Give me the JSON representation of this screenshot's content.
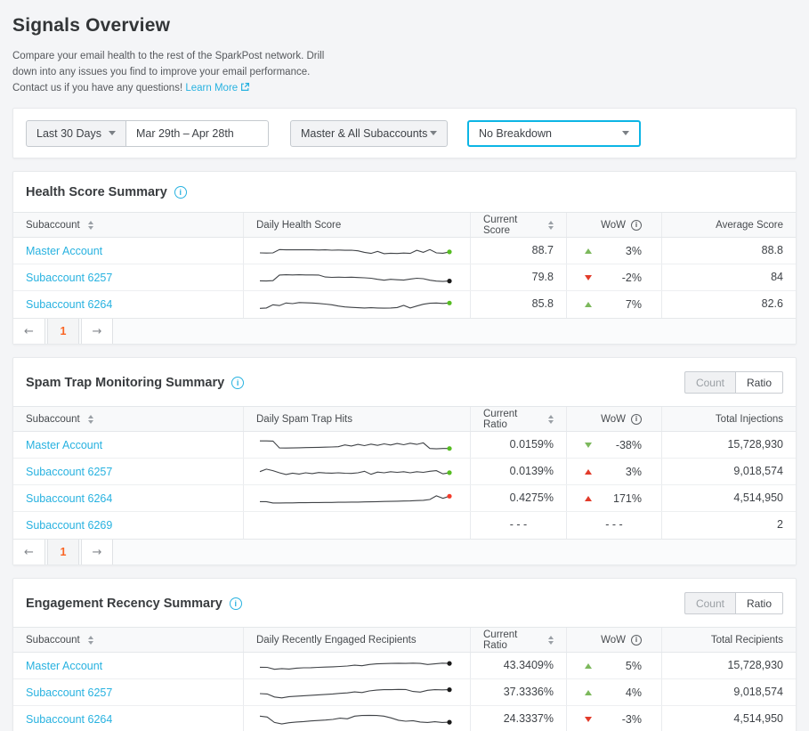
{
  "header": {
    "title": "Signals Overview",
    "description_line1": "Compare your email health to the rest of the SparkPost network. Drill",
    "description_line2": "down into any issues you find to improve your email performance.",
    "description_line3": "Contact us if you have any questions!",
    "learn_more_label": "Learn More"
  },
  "filters": {
    "relative_range_label": "Last 30 Days",
    "date_range_value": "Mar 29th – Apr 28th",
    "subaccounts_label": "Master & All Subaccounts",
    "breakdown_label": "No Breakdown"
  },
  "toggle": {
    "count_label": "Count",
    "ratio_label": "Ratio",
    "active": "Ratio"
  },
  "pagination": {
    "prev_label": "←",
    "page_label": "1",
    "next_label": "→"
  },
  "colors": {
    "accent": "#28b2e0",
    "focus_border": "#0cb5e5",
    "orange": "#fa6423",
    "green": "#7cb85c",
    "red": "#e23b2a",
    "dot_green": "#56bd22",
    "dot_red": "#f43b2a",
    "dot_black": "#1a1a1a",
    "spark_line": "#3f4246"
  },
  "sections": [
    {
      "title": "Health Score Summary",
      "show_toggle": false,
      "show_pagination": true,
      "columns": [
        {
          "label": "Subaccount",
          "sort": true
        },
        {
          "label": "Daily Health Score"
        },
        {
          "label": "Current Score",
          "sort": true
        },
        {
          "label": "WoW",
          "info": true
        },
        {
          "label": "Average Score"
        }
      ],
      "rows": [
        {
          "account": "Master Account",
          "current": "88.7",
          "wow": "3%",
          "trend": "up",
          "trend_color": "green",
          "total": "88.8",
          "dot": "green",
          "spark": [
            0.38,
            0.37,
            0.38,
            0.6,
            0.58,
            0.59,
            0.58,
            0.59,
            0.58,
            0.57,
            0.58,
            0.56,
            0.57,
            0.55,
            0.56,
            0.52,
            0.42,
            0.35,
            0.48,
            0.33,
            0.36,
            0.34,
            0.37,
            0.35,
            0.55,
            0.42,
            0.6,
            0.38,
            0.36,
            0.45
          ]
        },
        {
          "account": "Subaccount 6257",
          "current": "79.8",
          "wow": "-2%",
          "trend": "down",
          "trend_color": "red",
          "total": "84",
          "dot": "black",
          "spark": [
            0.3,
            0.29,
            0.31,
            0.68,
            0.7,
            0.69,
            0.7,
            0.69,
            0.69,
            0.68,
            0.55,
            0.53,
            0.54,
            0.53,
            0.54,
            0.52,
            0.5,
            0.47,
            0.4,
            0.34,
            0.4,
            0.37,
            0.35,
            0.42,
            0.47,
            0.44,
            0.34,
            0.28,
            0.26,
            0.29
          ]
        },
        {
          "account": "Subaccount 6264",
          "current": "85.8",
          "wow": "7%",
          "trend": "up",
          "trend_color": "green",
          "total": "82.6",
          "dot": "green",
          "spark": [
            0.25,
            0.27,
            0.48,
            0.43,
            0.6,
            0.56,
            0.63,
            0.61,
            0.6,
            0.57,
            0.53,
            0.48,
            0.4,
            0.34,
            0.31,
            0.29,
            0.27,
            0.29,
            0.27,
            0.26,
            0.27,
            0.3,
            0.44,
            0.27,
            0.4,
            0.52,
            0.58,
            0.6,
            0.57,
            0.6
          ]
        }
      ]
    },
    {
      "title": "Spam Trap Monitoring Summary",
      "show_toggle": true,
      "show_pagination": true,
      "columns": [
        {
          "label": "Subaccount",
          "sort": true
        },
        {
          "label": "Daily Spam Trap Hits"
        },
        {
          "label": "Current Ratio",
          "sort": true
        },
        {
          "label": "WoW",
          "info": true
        },
        {
          "label": "Total Injections"
        }
      ],
      "rows": [
        {
          "account": "Master Account",
          "current": "0.0159%",
          "wow": "-38%",
          "trend": "down",
          "trend_color": "green",
          "total": "15,728,930",
          "dot": "green",
          "spark": [
            0.78,
            0.78,
            0.77,
            0.32,
            0.31,
            0.32,
            0.33,
            0.34,
            0.35,
            0.36,
            0.37,
            0.38,
            0.4,
            0.52,
            0.45,
            0.55,
            0.47,
            0.57,
            0.49,
            0.59,
            0.51,
            0.61,
            0.53,
            0.63,
            0.55,
            0.65,
            0.28,
            0.26,
            0.28,
            0.28
          ]
        },
        {
          "account": "Subaccount 6257",
          "current": "0.0139%",
          "wow": "3%",
          "trend": "up",
          "trend_color": "red",
          "total": "9,018,574",
          "dot": "green",
          "spark": [
            0.52,
            0.68,
            0.58,
            0.44,
            0.33,
            0.42,
            0.36,
            0.44,
            0.39,
            0.46,
            0.43,
            0.42,
            0.44,
            0.41,
            0.4,
            0.44,
            0.54,
            0.34,
            0.49,
            0.44,
            0.51,
            0.47,
            0.51,
            0.44,
            0.51,
            0.47,
            0.54,
            0.58,
            0.37,
            0.45
          ]
        },
        {
          "account": "Subaccount 6264",
          "current": "0.4275%",
          "wow": "171%",
          "trend": "up",
          "trend_color": "red",
          "total": "4,514,950",
          "dot": "red",
          "spark": [
            0.3,
            0.3,
            0.21,
            0.21,
            0.22,
            0.22,
            0.23,
            0.23,
            0.24,
            0.24,
            0.25,
            0.25,
            0.26,
            0.26,
            0.27,
            0.27,
            0.28,
            0.29,
            0.3,
            0.31,
            0.32,
            0.33,
            0.34,
            0.35,
            0.37,
            0.39,
            0.44,
            0.68,
            0.52,
            0.66
          ]
        },
        {
          "account": "Subaccount 6269",
          "current": "- - -",
          "wow": "- - -",
          "trend": null,
          "trend_color": null,
          "total": "2",
          "dot": null,
          "spark": null
        }
      ]
    },
    {
      "title": "Engagement Recency Summary",
      "show_toggle": true,
      "show_pagination": false,
      "columns": [
        {
          "label": "Subaccount",
          "sort": true
        },
        {
          "label": "Daily Recently Engaged Recipients"
        },
        {
          "label": "Current Ratio",
          "sort": true
        },
        {
          "label": "WoW",
          "info": true
        },
        {
          "label": "Total Recipients"
        }
      ],
      "rows": [
        {
          "account": "Master Account",
          "current": "43.3409%",
          "wow": "5%",
          "trend": "up",
          "trend_color": "green",
          "total": "15,728,930",
          "dot": "black",
          "spark": [
            0.42,
            0.41,
            0.28,
            0.33,
            0.3,
            0.36,
            0.38,
            0.39,
            0.41,
            0.43,
            0.45,
            0.47,
            0.5,
            0.55,
            0.52,
            0.6,
            0.64,
            0.66,
            0.67,
            0.68,
            0.67,
            0.69,
            0.67,
            0.6,
            0.64,
            0.69,
            0.67
          ]
        },
        {
          "account": "Subaccount 6257",
          "current": "37.3336%",
          "wow": "4%",
          "trend": "up",
          "trend_color": "green",
          "total": "9,018,574",
          "dot": "black",
          "spark": [
            0.44,
            0.42,
            0.22,
            0.16,
            0.24,
            0.27,
            0.3,
            0.33,
            0.36,
            0.39,
            0.42,
            0.46,
            0.49,
            0.55,
            0.51,
            0.62,
            0.67,
            0.7,
            0.7,
            0.72,
            0.71,
            0.58,
            0.54,
            0.66,
            0.7,
            0.69,
            0.7
          ]
        },
        {
          "account": "Subaccount 6264",
          "current": "24.3337%",
          "wow": "-3%",
          "trend": "down",
          "trend_color": "red",
          "total": "4,514,950",
          "dot": "black",
          "spark": [
            0.72,
            0.66,
            0.3,
            0.2,
            0.28,
            0.33,
            0.36,
            0.4,
            0.43,
            0.46,
            0.5,
            0.58,
            0.54,
            0.72,
            0.76,
            0.77,
            0.76,
            0.72,
            0.6,
            0.45,
            0.38,
            0.42,
            0.33,
            0.3,
            0.35,
            0.3,
            0.32
          ]
        }
      ]
    }
  ]
}
